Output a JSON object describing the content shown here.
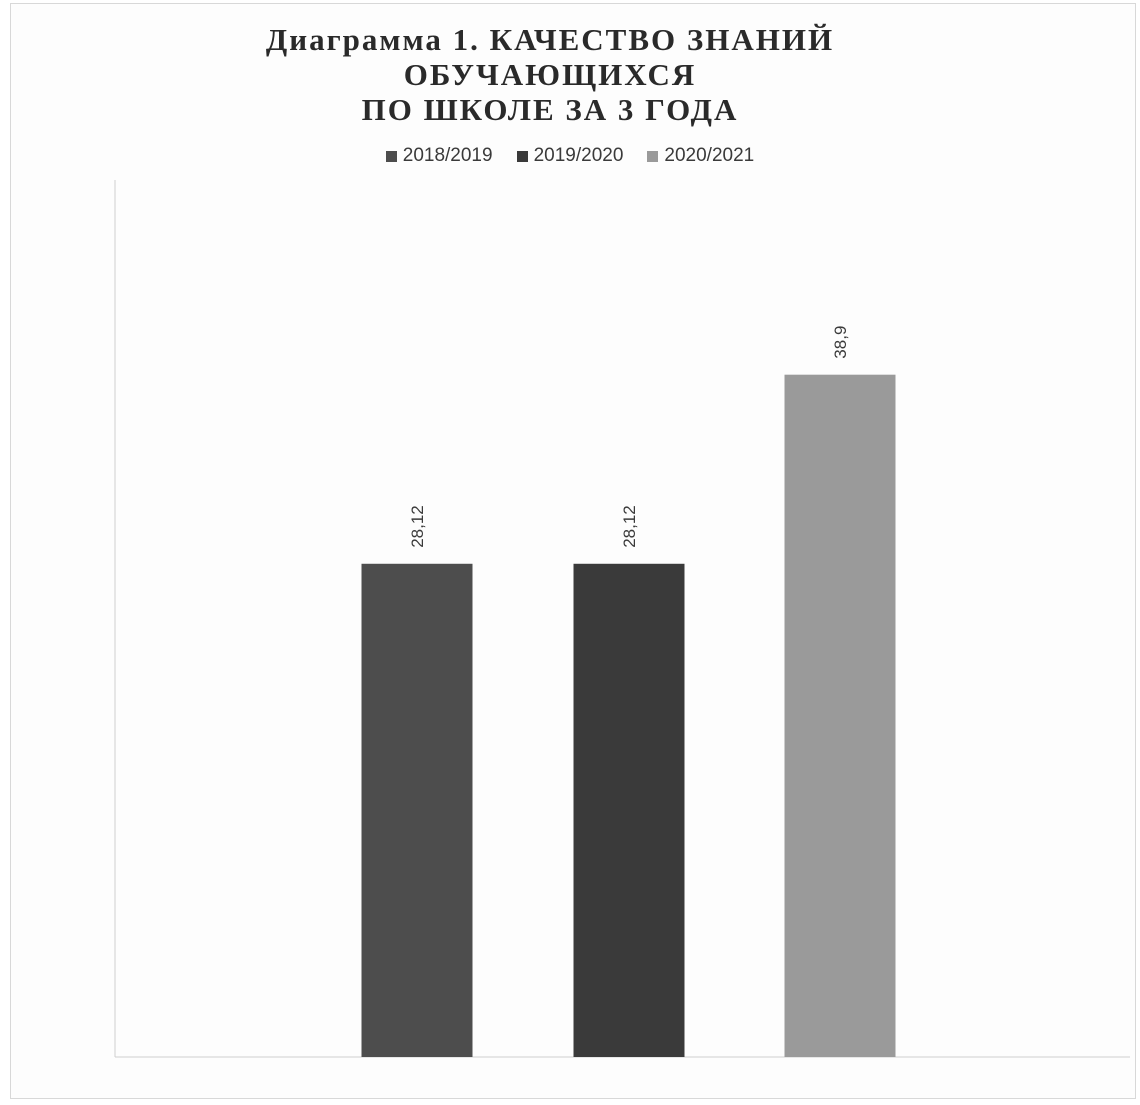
{
  "chart_data": {
    "type": "bar",
    "title_lines": [
      "Диаграмма 1. КАЧЕСТВО ЗНАНИЙ",
      "ОБУЧАЮЩИХСЯ",
      "ПО ШКОЛЕ ЗА 3 ГОДА"
    ],
    "xlabel": "",
    "ylabel": "",
    "ylim": [
      0,
      50
    ],
    "grid": false,
    "legend_position": "top-center",
    "series": [
      {
        "name": "2018/2019",
        "value": 28.12,
        "label": "28,12",
        "color": "#4d4d4d"
      },
      {
        "name": "2019/2020",
        "value": 28.12,
        "label": "28,12",
        "color": "#3a3a3a"
      },
      {
        "name": "2020/2021",
        "value": 38.9,
        "label": "38,9",
        "color": "#9a9a9a"
      }
    ]
  }
}
